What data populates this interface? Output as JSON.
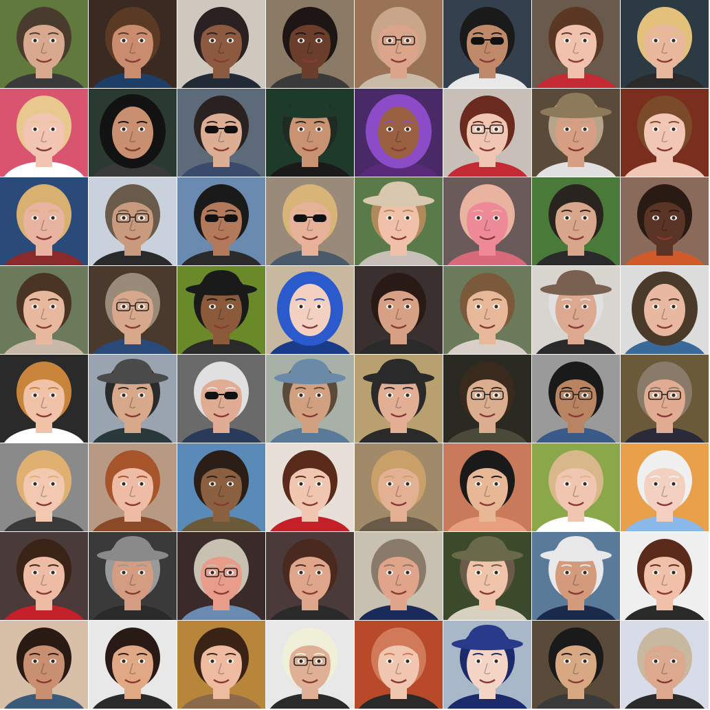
{
  "grid": {
    "rows": 8,
    "cols": 8
  },
  "tiles": [
    {
      "bg": "#5f7a3c",
      "skin": "#d9a98f",
      "hair": "#4a3b2f",
      "acc": "none"
    },
    {
      "bg": "#3a2a22",
      "skin": "#c98c6e",
      "hair": "#5a3a24",
      "acc": "none",
      "shirt": "#1f3e66"
    },
    {
      "bg": "#cfc8bf",
      "skin": "#8c5a40",
      "hair": "#2a2222",
      "acc": "none",
      "shirt": "#222a36"
    },
    {
      "bg": "#8a7a66",
      "skin": "#6a3e2a",
      "hair": "#1e1614",
      "acc": "none"
    },
    {
      "bg": "#9a7356",
      "skin": "#dca48a",
      "hair": "#c9a58a",
      "acc": "glasses",
      "shirt": "#c9bba8"
    },
    {
      "bg": "#34404e",
      "skin": "#c08a6a",
      "hair": "#1a1a1a",
      "acc": "sunglasses",
      "shirt": "#e8e8e8"
    },
    {
      "bg": "#6a5a4e",
      "skin": "#f0c2ae",
      "hair": "#5a3824",
      "acc": "none",
      "shirt": "#c42a34"
    },
    {
      "bg": "#2c3a44",
      "skin": "#e9b89c",
      "hair": "#e3c17c",
      "acc": "none",
      "shirt": "#2a2a2a"
    },
    {
      "bg": "#d9546e",
      "skin": "#f2c4b2",
      "hair": "#e9c890",
      "acc": "none",
      "shirt": "#ffffff"
    },
    {
      "bg": "#2a3a30",
      "skin": "#c89070",
      "hair": "#121212",
      "acc": "hood"
    },
    {
      "bg": "#5c6a7a",
      "skin": "#dcae94",
      "hair": "#2a2220",
      "acc": "sunglasses",
      "shirt": "#3a4a6a"
    },
    {
      "bg": "#1e3a2a",
      "skin": "#c99272",
      "hair": "#1e2a22",
      "acc": "hat",
      "shirt": "#1a1a1a",
      "hatc": "#1e3a2a"
    },
    {
      "bg": "#4a2a66",
      "skin": "#9a6042",
      "hair": "#8c4cc8",
      "acc": "hood",
      "shirt": "#5a2a7a"
    },
    {
      "bg": "#c8c0b8",
      "skin": "#f0c6b2",
      "hair": "#6a2a1e",
      "acc": "glasses",
      "shirt": "#c42a34"
    },
    {
      "bg": "#5a4a3a",
      "skin": "#d69e82",
      "hair": "#b6a48a",
      "acc": "hat",
      "shirt": "#e0e0e0",
      "hatc": "#8c7a5a"
    },
    {
      "bg": "#7a2e1e",
      "skin": "#f2c6b4",
      "hair": "#7a4a2a",
      "acc": "none",
      "shirt": "#f2c6b4"
    },
    {
      "bg": "#2a4a7a",
      "skin": "#e8b4a0",
      "hair": "#d8b070",
      "acc": "none",
      "shirt": "#8a2a2a"
    },
    {
      "bg": "#c9d2dc",
      "skin": "#c89a7e",
      "hair": "#6a5a4a",
      "acc": "glasses",
      "shirt": "#2a2a2a"
    },
    {
      "bg": "#6a8ab0",
      "skin": "#b27a5a",
      "hair": "#1a1a1a",
      "acc": "sunglasses",
      "shirt": "#2a2a2a"
    },
    {
      "bg": "#9a8a7a",
      "skin": "#e6b29a",
      "hair": "#d8b478",
      "acc": "sunglasses",
      "shirt": "#4a5a6a"
    },
    {
      "bg": "#5a7a4a",
      "skin": "#f0c0a8",
      "hair": "#b08a5a",
      "acc": "hat",
      "shirt": "#c8c0b8",
      "hatc": "#d8c8b0"
    },
    {
      "bg": "#6a5a5a",
      "skin": "#ee8a98",
      "hair": "#e8b4a0",
      "acc": "none",
      "shirt": "#d86a7a"
    },
    {
      "bg": "#4a7a3a",
      "skin": "#d8a68a",
      "hair": "#2a2420",
      "acc": "none",
      "shirt": "#2a2a2a"
    },
    {
      "bg": "#8a6a5a",
      "skin": "#5a3424",
      "hair": "#2a1a14",
      "acc": "none",
      "shirt": "#d05a2a"
    },
    {
      "bg": "#6a7a5a",
      "skin": "#e8b89e",
      "hair": "#4a3424",
      "acc": "none",
      "shirt": "#c8b8a8"
    },
    {
      "bg": "#4a3a2e",
      "skin": "#d8a88c",
      "hair": "#9a8a7a",
      "acc": "glasses",
      "shirt": "#2a4a7a"
    },
    {
      "bg": "#6a8a2a",
      "skin": "#8a5a3a",
      "hair": "#1a1a1a",
      "acc": "hat",
      "shirt": "#2a2a2a",
      "hatc": "#1a1a1a"
    },
    {
      "bg": "#c8b8a0",
      "skin": "#f4d0c0",
      "hair": "#2a5acc",
      "acc": "hood",
      "shirt": "#1a3a8a"
    },
    {
      "bg": "#3a3030",
      "skin": "#d8a084",
      "hair": "#2a1a16",
      "acc": "none",
      "shirt": "#2a2a2a"
    },
    {
      "bg": "#6a7a5a",
      "skin": "#e8b89a",
      "hair": "#7a5a3a",
      "acc": "none",
      "shirt": "#d8d0c8"
    },
    {
      "bg": "#d8d4d0",
      "skin": "#dca890",
      "hair": "#e0e0e0",
      "acc": "hat",
      "shirt": "#2a2a2a",
      "hatc": "#7a6050"
    },
    {
      "bg": "#dcdcdc",
      "skin": "#e8b8a0",
      "hair": "#4a3a2a",
      "acc": "hood",
      "shirt": "#3a6a9a"
    },
    {
      "bg": "#2a2a2a",
      "skin": "#f0c2a8",
      "hair": "#c8843a",
      "acc": "none",
      "shirt": "#ffffff"
    },
    {
      "bg": "#9aa4b0",
      "skin": "#d8a88a",
      "hair": "#2a2a2a",
      "acc": "hat",
      "shirt": "#2a3a3a",
      "hatc": "#4a4a4a"
    },
    {
      "bg": "#6a6a6a",
      "skin": "#e0ac94",
      "hair": "#e0e0e0",
      "acc": "sunglasses",
      "shirt": "#2a3a5a"
    },
    {
      "bg": "#a8b0a8",
      "skin": "#d0a080",
      "hair": "#5a4a3a",
      "acc": "hat",
      "shirt": "#5a7a9a",
      "hatc": "#6a8aa8"
    },
    {
      "bg": "#b8a070",
      "skin": "#e2ae94",
      "hair": "#2a2a2a",
      "acc": "hat",
      "shirt": "#2a2a2a",
      "hatc": "#2a2a2a"
    },
    {
      "bg": "#2a2a22",
      "skin": "#dcae90",
      "hair": "#3a2a1e",
      "acc": "glasses",
      "shirt": "#4a4a3a"
    },
    {
      "bg": "#9a9a9a",
      "skin": "#b88462",
      "hair": "#1a1a1a",
      "acc": "glasses",
      "shirt": "#3a5a8a"
    },
    {
      "bg": "#6a5a3a",
      "skin": "#e2ac92",
      "hair": "#8a7a6a",
      "acc": "glasses",
      "shirt": "#2a2a3a"
    },
    {
      "bg": "#8a8a8a",
      "skin": "#f2c8b0",
      "hair": "#e0b070",
      "acc": "none",
      "shirt": "#3a3a3a"
    },
    {
      "bg": "#b89a84",
      "skin": "#eebca4",
      "hair": "#a8542a",
      "acc": "none",
      "shirt": "#8a4a2a"
    },
    {
      "bg": "#5a8ab8",
      "skin": "#8a6040",
      "hair": "#2a1e16",
      "acc": "none",
      "shirt": "#6a5a3a"
    },
    {
      "bg": "#e8e0d8",
      "skin": "#f0c6b0",
      "hair": "#5a2a1a",
      "acc": "none",
      "shirt": "#c4202a"
    },
    {
      "bg": "#a08a6a",
      "skin": "#e4b094",
      "hair": "#c8a068",
      "acc": "none",
      "shirt": "#6a5a4a"
    },
    {
      "bg": "#c87a5a",
      "skin": "#e8b896",
      "hair": "#1a1a1a",
      "acc": "none",
      "shirt": "#e8a080"
    },
    {
      "bg": "#8aa84a",
      "skin": "#f0c6b0",
      "hair": "#d8b88a",
      "acc": "none",
      "shirt": "#ffffff"
    },
    {
      "bg": "#e8a04a",
      "skin": "#f4d0c0",
      "hair": "#f0f0f0",
      "acc": "none",
      "shirt": "#8ab8e8"
    },
    {
      "bg": "#4a3a3a",
      "skin": "#eebca4",
      "hair": "#3a2418",
      "acc": "none",
      "shirt": "#c4202a"
    },
    {
      "bg": "#3a3a3a",
      "skin": "#d49c80",
      "hair": "#9a9a9a",
      "acc": "hat",
      "shirt": "#2a2a2a",
      "hatc": "#8a8a8a"
    },
    {
      "bg": "#3a2a2a",
      "skin": "#e89c8a",
      "hair": "#c8c0b0",
      "acc": "glasses",
      "shirt": "#6a8ab0"
    },
    {
      "bg": "#4a3a3a",
      "skin": "#e0a68c",
      "hair": "#4a2a1e",
      "acc": "none",
      "shirt": "#2a2a2a"
    },
    {
      "bg": "#c8c0b0",
      "skin": "#e0a48a",
      "hair": "#8a7a6a",
      "acc": "none",
      "shirt": "#1a2a5a"
    },
    {
      "bg": "#3a4a2a",
      "skin": "#f0c4aa",
      "hair": "#6a5a4a",
      "acc": "hat",
      "shirt": "#d8d0c0",
      "hatc": "#6a6a4a"
    },
    {
      "bg": "#5a7a9a",
      "skin": "#d49a7c",
      "hair": "#e8e8e8",
      "acc": "hat",
      "shirt": "#1a2a4a",
      "hatc": "#e8e8e8"
    },
    {
      "bg": "#f0f0f0",
      "skin": "#f0c0a8",
      "hair": "#5a2a1a",
      "acc": "none",
      "shirt": "#2a2a2a"
    },
    {
      "bg": "#d8c0a8",
      "skin": "#c89070",
      "hair": "#2a1a14",
      "acc": "none",
      "shirt": "#3a5a7a"
    },
    {
      "bg": "#e8e8e8",
      "skin": "#e0a884",
      "hair": "#2a1a16",
      "acc": "none",
      "shirt": "#2a2a2a"
    },
    {
      "bg": "#b8863a",
      "skin": "#eebaa0",
      "hair": "#3a2214",
      "acc": "none",
      "shirt": "#8a6a4a"
    },
    {
      "bg": "#e8e8e8",
      "skin": "#e0b096",
      "hair": "#f0f0d8",
      "acc": "glasses",
      "shirt": "#2a2a2a"
    },
    {
      "bg": "#b84a2a",
      "skin": "#f0c6b0",
      "hair": "#d07a5a",
      "acc": "none",
      "shirt": "#2a2a2a"
    },
    {
      "bg": "#a8b8c8",
      "skin": "#f4d4c4",
      "hair": "#1a2a6a",
      "acc": "hat",
      "shirt": "#1a2a6a",
      "hatc": "#2a3a8a"
    },
    {
      "bg": "#5a4a3a",
      "skin": "#d8a882",
      "hair": "#1a1a1a",
      "acc": "none",
      "shirt": "#3a3a3a"
    },
    {
      "bg": "#d8dce8",
      "skin": "#dca88e",
      "hair": "#c8b8a0",
      "acc": "none",
      "shirt": "#2a2a2a"
    }
  ]
}
